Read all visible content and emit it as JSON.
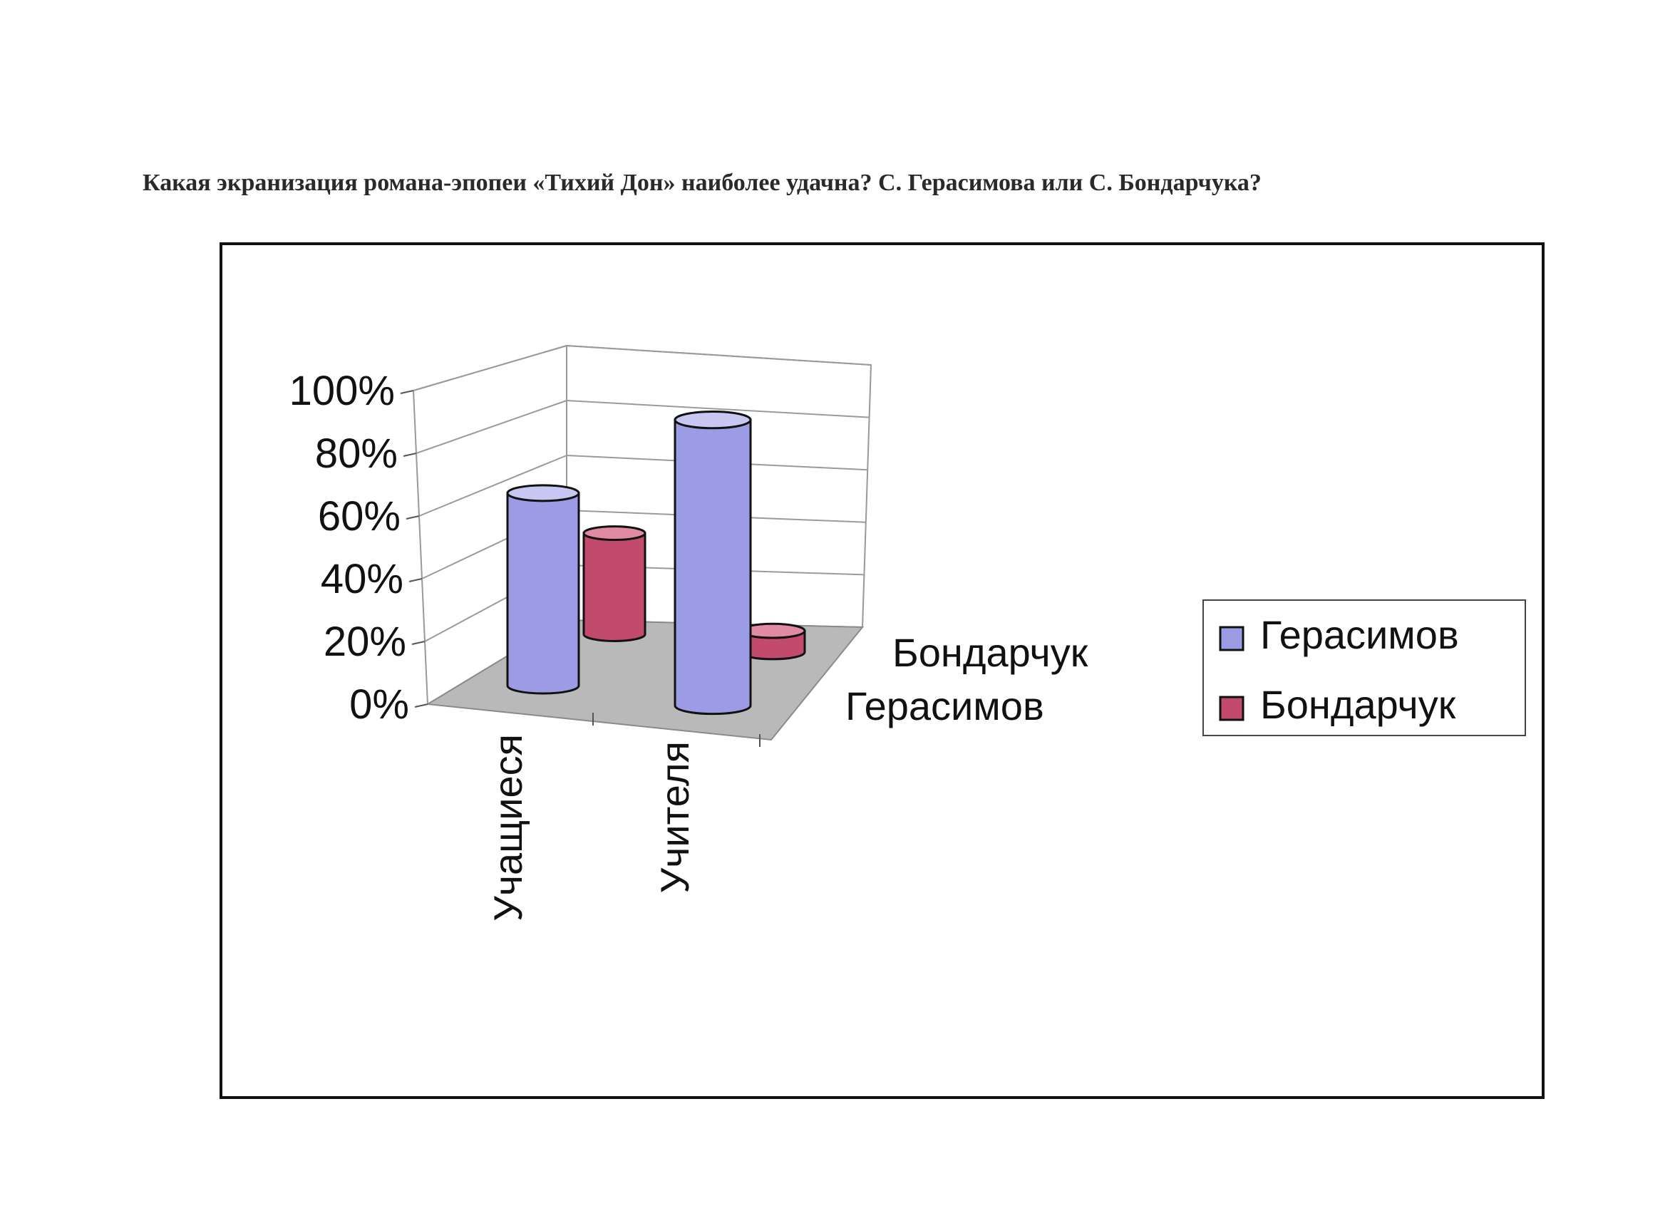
{
  "page": {
    "heading": "Какая экранизация романа-эпопеи «Тихий Дон» наиболее удачна? С. Герасимова или С. Бондарчука?"
  },
  "colors": {
    "frame": "#111111",
    "wall": "#ffffff",
    "floor": "#b9b9b9",
    "gridline": "#9a9a9a",
    "series_1": "#9c9ce4",
    "series_1_top": "#c7c7f2",
    "series_2": "#c24a6c",
    "series_2_top": "#e08aa4"
  },
  "chart_data": {
    "type": "bar",
    "style": "3d-cylinder",
    "categories": [
      "Учащиеся",
      "Учителя"
    ],
    "series": [
      {
        "name": "Герасимов",
        "values": [
          62,
          92
        ]
      },
      {
        "name": "Бондарчук",
        "values": [
          38,
          8
        ]
      }
    ],
    "depth_labels": [
      "Бондарчук",
      "Герасимов"
    ],
    "y_ticks": [
      "0%",
      "20%",
      "40%",
      "60%",
      "80%",
      "100%"
    ],
    "ylim": [
      0,
      100
    ],
    "grid": true,
    "legend": "right",
    "legend_entries": [
      "Герасимов",
      "Бондарчук"
    ]
  }
}
